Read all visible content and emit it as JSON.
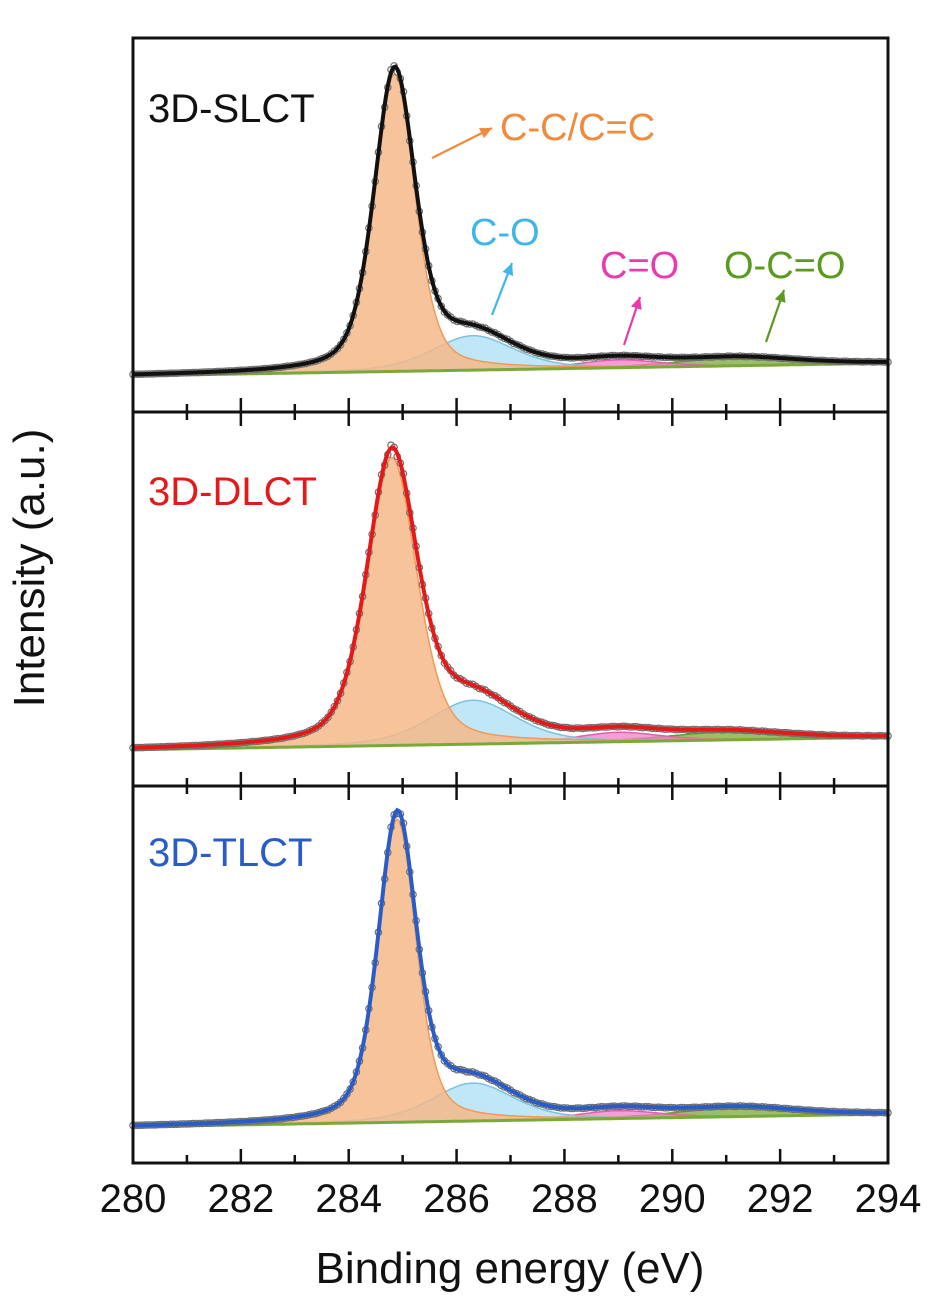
{
  "chart_data": {
    "type": "line",
    "title": "",
    "xlabel": "Binding energy (eV)",
    "ylabel": "Intensity (a.u.)",
    "xlim": [
      280,
      294
    ],
    "xticks": [
      "280",
      "282",
      "284",
      "286",
      "288",
      "290",
      "292",
      "294"
    ],
    "colors": {
      "cc": "#f5b98a",
      "co": "#a9dff5",
      "c_eq_o": "#f07fc8",
      "oco": "#7aa83a",
      "data_points": "#6f6f6f"
    },
    "component_labels": {
      "cc": "C-C/C=C",
      "co": "C-O",
      "c_eq_o": "C=O",
      "oco": "O-C=O"
    },
    "component_label_colors": {
      "cc": "#f08a3c",
      "co": "#3fb6e8",
      "c_eq_o": "#e83cae",
      "oco": "#5a9a1e"
    },
    "panels": [
      {
        "name": "3D-SLCT",
        "label_color": "#111111",
        "fit_color": "#111111",
        "ylim": [
          0,
          1.08
        ],
        "baseline": {
          "start": 0.02,
          "end": 0.06
        },
        "components": [
          {
            "key": "cc",
            "center": 284.85,
            "amplitude": 0.95,
            "width": 0.45
          },
          {
            "key": "co",
            "center": 286.3,
            "amplitude": 0.11,
            "width": 0.9
          },
          {
            "key": "c_eq_o",
            "center": 289.0,
            "amplitude": 0.025,
            "width": 0.9
          },
          {
            "key": "oco",
            "center": 291.2,
            "amplitude": 0.025,
            "width": 1.3
          }
        ]
      },
      {
        "name": "3D-DLCT",
        "label_color": "#e41a1a",
        "fit_color": "#e41a1a",
        "ylim": [
          0,
          1.08
        ],
        "baseline": {
          "start": 0.02,
          "end": 0.06
        },
        "components": [
          {
            "key": "cc",
            "center": 284.8,
            "amplitude": 0.92,
            "width": 0.55
          },
          {
            "key": "co",
            "center": 286.3,
            "amplitude": 0.14,
            "width": 0.95
          },
          {
            "key": "c_eq_o",
            "center": 289.0,
            "amplitude": 0.03,
            "width": 0.9
          },
          {
            "key": "oco",
            "center": 291.0,
            "amplitude": 0.025,
            "width": 1.3
          }
        ]
      },
      {
        "name": "3D-TLCT",
        "label_color": "#2a5cc8",
        "fit_color": "#2a5cc8",
        "ylim": [
          0,
          1.08
        ],
        "baseline": {
          "start": 0.02,
          "end": 0.06
        },
        "components": [
          {
            "key": "cc",
            "center": 284.9,
            "amplitude": 0.96,
            "width": 0.42
          },
          {
            "key": "co",
            "center": 286.3,
            "amplitude": 0.12,
            "width": 0.9
          },
          {
            "key": "c_eq_o",
            "center": 289.0,
            "amplitude": 0.025,
            "width": 0.9
          },
          {
            "key": "oco",
            "center": 291.2,
            "amplitude": 0.028,
            "width": 1.3
          }
        ]
      }
    ]
  }
}
